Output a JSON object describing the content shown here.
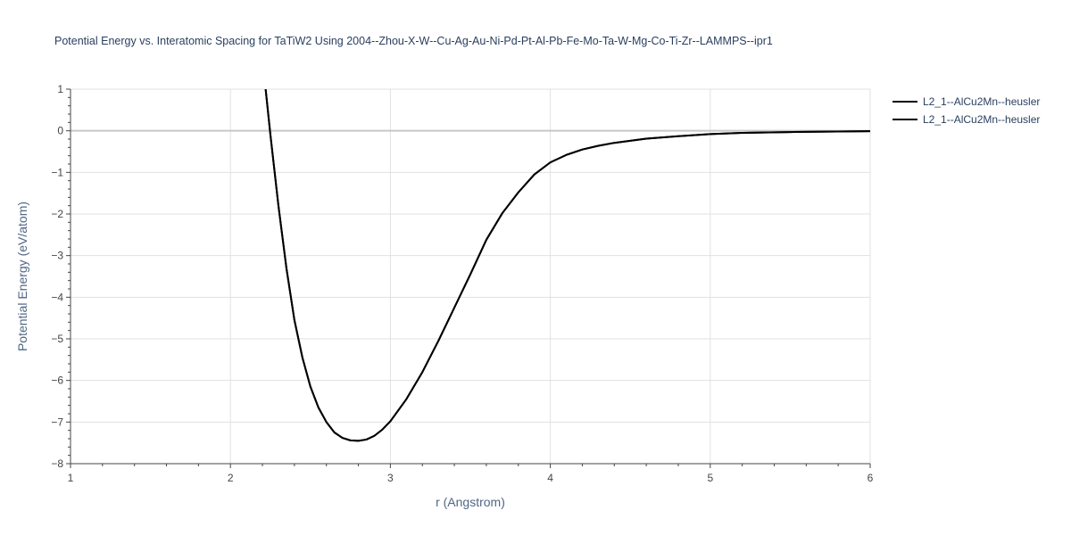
{
  "chart_data": {
    "type": "line",
    "title": "Potential Energy vs. Interatomic Spacing for TaTiW2 Using 2004--Zhou-X-W--Cu-Ag-Au-Ni-Pd-Pt-Al-Pb-Fe-Mo-Ta-W-Mg-Co-Ti-Zr--LAMMPS--ipr1",
    "xlabel": "r (Angstrom)",
    "ylabel": "Potential Energy (eV/atom)",
    "xlim": [
      1,
      6
    ],
    "ylim": [
      -8,
      1
    ],
    "xticks": [
      1,
      2,
      3,
      4,
      5,
      6
    ],
    "yticks": [
      1,
      0,
      -1,
      -2,
      -3,
      -4,
      -5,
      -6,
      -7,
      -8
    ],
    "ytick_labels": [
      "1",
      "0",
      "−1",
      "−2",
      "−3",
      "−4",
      "−5",
      "−6",
      "−7",
      "−8"
    ],
    "grid": true,
    "legend_position": "top-right",
    "line_color": "#000000",
    "series": [
      {
        "name": "L2_1--AlCu2Mn--heusler",
        "x": [
          2.22,
          2.25,
          2.3,
          2.35,
          2.4,
          2.45,
          2.5,
          2.55,
          2.6,
          2.65,
          2.7,
          2.75,
          2.8,
          2.85,
          2.9,
          2.95,
          3.0,
          3.1,
          3.2,
          3.3,
          3.4,
          3.5,
          3.6,
          3.7,
          3.8,
          3.9,
          4.0,
          4.1,
          4.2,
          4.3,
          4.4,
          4.5,
          4.6,
          4.8,
          5.0,
          5.2,
          5.5,
          6.0
        ],
        "y": [
          1.0,
          -0.1,
          -1.8,
          -3.3,
          -4.55,
          -5.45,
          -6.15,
          -6.65,
          -7.0,
          -7.25,
          -7.38,
          -7.44,
          -7.45,
          -7.42,
          -7.33,
          -7.18,
          -6.98,
          -6.45,
          -5.8,
          -5.05,
          -4.25,
          -3.45,
          -2.62,
          -1.98,
          -1.48,
          -1.05,
          -0.76,
          -0.58,
          -0.45,
          -0.36,
          -0.29,
          -0.24,
          -0.19,
          -0.13,
          -0.08,
          -0.05,
          -0.03,
          -0.01
        ]
      },
      {
        "name": "L2_1--AlCu2Mn--heusler",
        "x": [
          2.22,
          2.25,
          2.3,
          2.35,
          2.4,
          2.45,
          2.5,
          2.55,
          2.6,
          2.65,
          2.7,
          2.75,
          2.8,
          2.85,
          2.9,
          2.95,
          3.0,
          3.1,
          3.2,
          3.3,
          3.4,
          3.5,
          3.6,
          3.7,
          3.8,
          3.9,
          4.0,
          4.1,
          4.2,
          4.3,
          4.4,
          4.5,
          4.6,
          4.8,
          5.0,
          5.2,
          5.5,
          6.0
        ],
        "y": [
          1.0,
          -0.1,
          -1.8,
          -3.3,
          -4.55,
          -5.45,
          -6.15,
          -6.65,
          -7.0,
          -7.25,
          -7.38,
          -7.44,
          -7.45,
          -7.42,
          -7.33,
          -7.18,
          -6.98,
          -6.45,
          -5.8,
          -5.05,
          -4.25,
          -3.45,
          -2.62,
          -1.98,
          -1.48,
          -1.05,
          -0.76,
          -0.58,
          -0.45,
          -0.36,
          -0.29,
          -0.24,
          -0.19,
          -0.13,
          -0.08,
          -0.05,
          -0.03,
          -0.01
        ]
      }
    ]
  }
}
